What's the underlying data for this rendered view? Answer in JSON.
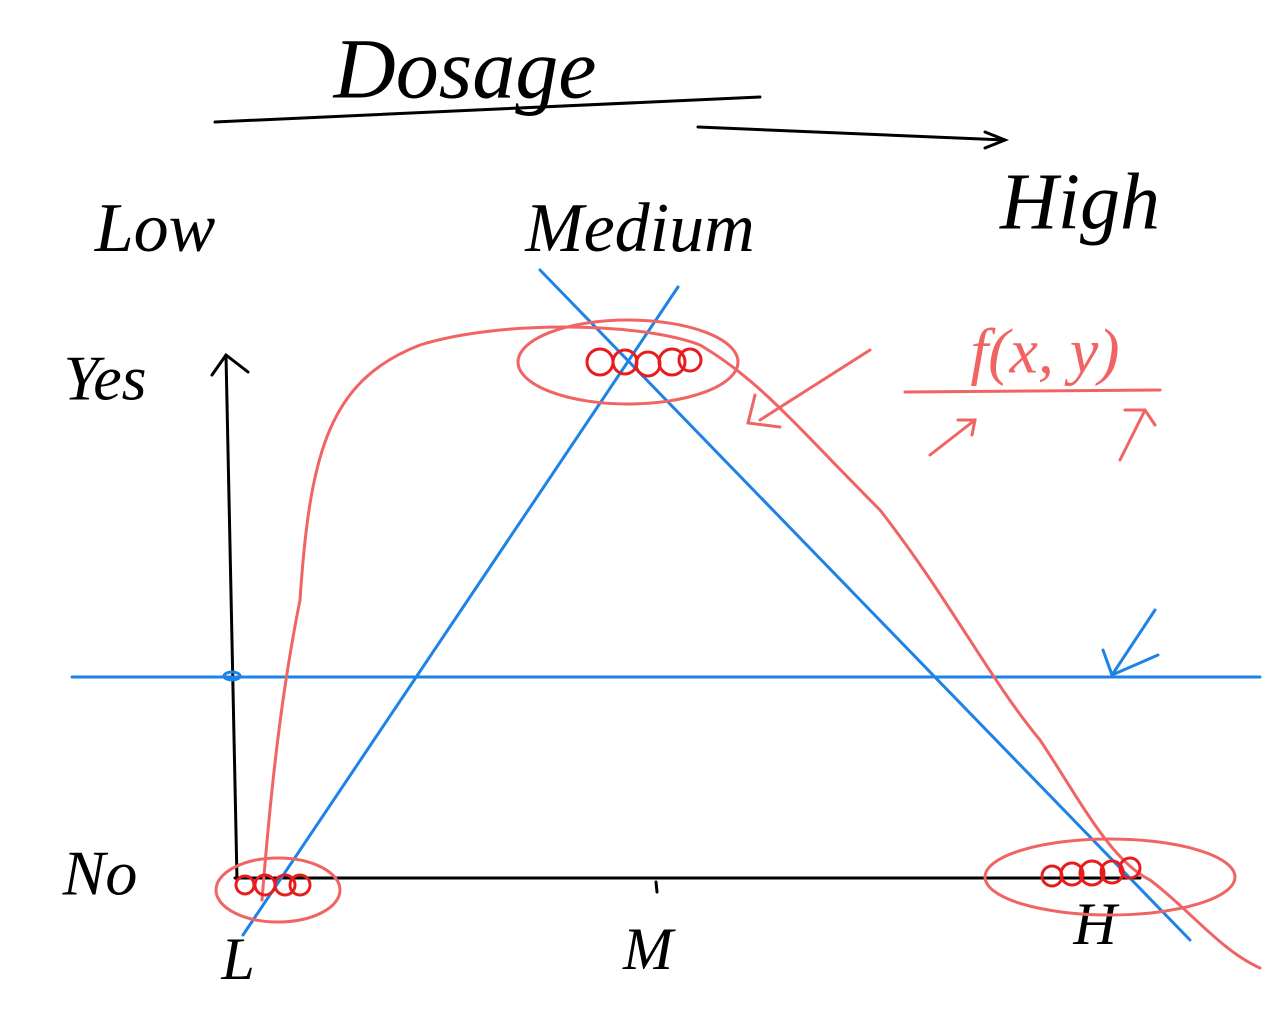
{
  "header": {
    "title": "Dosage"
  },
  "dosage_levels": [
    "Low",
    "Medium",
    "High"
  ],
  "y_axis": {
    "labels": [
      "Yes",
      "No"
    ]
  },
  "x_axis": {
    "labels": [
      "L",
      "M",
      "H"
    ]
  },
  "annotation": "f(x, y)"
}
